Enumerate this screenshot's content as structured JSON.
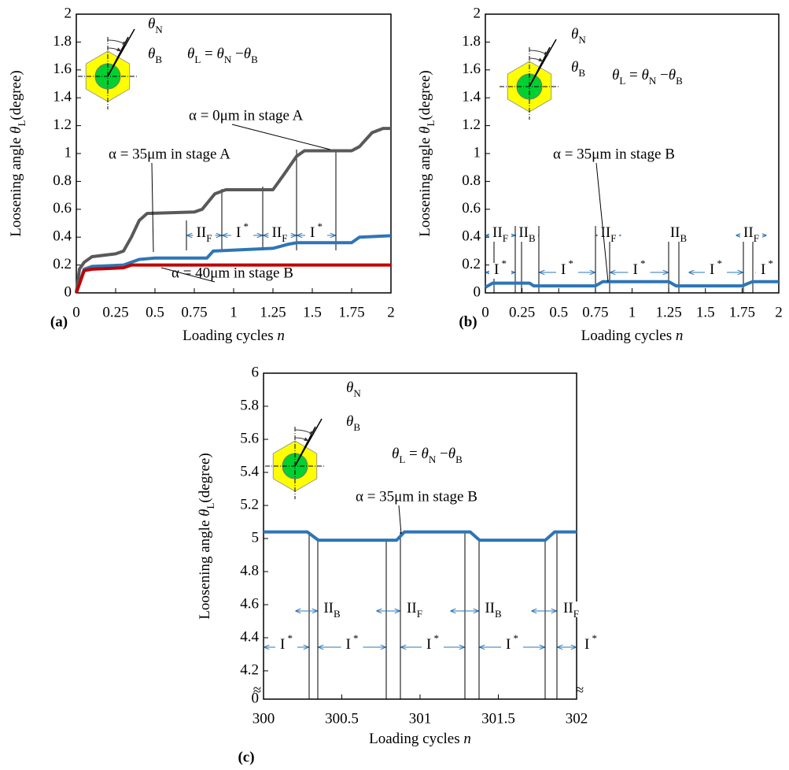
{
  "chart_data": [
    {
      "type": "line",
      "panel": "(a)",
      "xlabel": [
        "Loading cycles ",
        {
          "i": "n"
        }
      ],
      "ylabel": [
        "Loosening angle ",
        {
          "i": "θ"
        },
        {
          "sub": "L"
        },
        "(degree)"
      ],
      "formula": [
        {
          "i": "θ"
        },
        {
          "sub": "L"
        },
        " = ",
        {
          "i": "θ"
        },
        {
          "sub": "N"
        },
        " −",
        {
          "i": "θ"
        },
        {
          "sub": "B"
        }
      ],
      "inset_n": [
        {
          "i": "θ"
        },
        {
          "sub": "N"
        }
      ],
      "inset_b": [
        {
          "i": "θ"
        },
        {
          "sub": "B"
        }
      ],
      "xlim": [
        0,
        2
      ],
      "ylim": [
        0,
        2
      ],
      "xticks": [
        0,
        0.25,
        0.5,
        0.75,
        1,
        1.25,
        1.5,
        1.75,
        2
      ],
      "yticks": [
        0,
        0.2,
        0.4,
        0.6,
        0.8,
        1,
        1.2,
        1.4,
        1.6,
        1.8,
        2
      ],
      "regions": [
        [
          "II",
          {
            "sub": "F"
          }
        ],
        [
          "I",
          {
            "sup": " *"
          }
        ],
        [
          "II",
          {
            "sub": "F"
          }
        ],
        [
          "I",
          {
            "sup": " *"
          }
        ]
      ],
      "series": [
        {
          "name": "α = 0μm in stage A",
          "color": "#595959",
          "x": [
            0,
            0.02,
            0.05,
            0.1,
            0.25,
            0.3,
            0.35,
            0.4,
            0.45,
            0.75,
            0.8,
            0.88,
            0.95,
            1.25,
            1.32,
            1.4,
            1.45,
            1.75,
            1.8,
            1.88,
            1.95,
            2
          ],
          "values": [
            0,
            0.17,
            0.22,
            0.26,
            0.28,
            0.3,
            0.4,
            0.52,
            0.57,
            0.58,
            0.6,
            0.71,
            0.74,
            0.74,
            0.85,
            0.98,
            1.02,
            1.02,
            1.05,
            1.15,
            1.18,
            1.18
          ]
        },
        {
          "name": "α = 35μm in stage A",
          "color": "#2e75b6",
          "x": [
            0,
            0.05,
            0.1,
            0.3,
            0.4,
            0.5,
            0.83,
            0.87,
            1.25,
            1.35,
            1.4,
            1.75,
            1.8,
            2
          ],
          "values": [
            0,
            0.17,
            0.19,
            0.2,
            0.24,
            0.25,
            0.25,
            0.3,
            0.32,
            0.35,
            0.36,
            0.36,
            0.4,
            0.41
          ]
        },
        {
          "name": "α = 40μm in stage B",
          "color": "#c00000",
          "x": [
            0,
            0.05,
            0.1,
            0.3,
            0.35,
            2
          ],
          "values": [
            0,
            0.16,
            0.17,
            0.18,
            0.2,
            0.2
          ]
        }
      ]
    },
    {
      "type": "line",
      "panel": "(b)",
      "xlabel": [
        "Loading cycles ",
        {
          "i": "n"
        }
      ],
      "ylabel": [
        "Loosening angle ",
        {
          "i": "θ"
        },
        {
          "sub": "L"
        },
        "(degree)"
      ],
      "formula": [
        {
          "i": "θ"
        },
        {
          "sub": "L"
        },
        " = ",
        {
          "i": "θ"
        },
        {
          "sub": "N"
        },
        " −",
        {
          "i": "θ"
        },
        {
          "sub": "B"
        }
      ],
      "inset_n": [
        {
          "i": "θ"
        },
        {
          "sub": "N"
        }
      ],
      "inset_b": [
        {
          "i": "θ"
        },
        {
          "sub": "B"
        }
      ],
      "xlim": [
        0,
        2
      ],
      "ylim": [
        0,
        2
      ],
      "xticks": [
        0,
        0.25,
        0.5,
        0.75,
        1,
        1.25,
        1.5,
        1.75,
        2
      ],
      "yticks": [
        0,
        0.2,
        0.4,
        0.6,
        0.8,
        1,
        1.2,
        1.4,
        1.6,
        1.8,
        2
      ],
      "regions": [
        [
          "II",
          {
            "sub": "F"
          }
        ],
        [
          "II",
          {
            "sub": "B"
          }
        ],
        [
          "II",
          {
            "sub": "F"
          }
        ],
        [
          "II",
          {
            "sub": "B"
          }
        ],
        [
          "II",
          {
            "sub": "F"
          }
        ],
        [
          "I",
          {
            "sup": " *"
          }
        ],
        [
          "I",
          {
            "sup": " *"
          }
        ],
        [
          "I",
          {
            "sup": " *"
          }
        ],
        [
          "I",
          {
            "sup": " *"
          }
        ],
        [
          "I",
          {
            "sup": " *"
          }
        ]
      ],
      "series": [
        {
          "name": "α = 35μm in stage B",
          "color": "#2e75b6",
          "x": [
            0,
            0.05,
            0.3,
            0.33,
            0.75,
            0.8,
            1.25,
            1.3,
            1.75,
            1.82,
            2
          ],
          "values": [
            0.04,
            0.07,
            0.07,
            0.05,
            0.05,
            0.08,
            0.08,
            0.05,
            0.05,
            0.08,
            0.08
          ]
        }
      ]
    },
    {
      "type": "line",
      "panel": "(c)",
      "xlabel": [
        "Loading cycles ",
        {
          "i": "n"
        }
      ],
      "ylabel": [
        "Loosening angle ",
        {
          "i": "θ"
        },
        {
          "sub": "L"
        },
        "(degree)"
      ],
      "formula": [
        {
          "i": "θ"
        },
        {
          "sub": "L"
        },
        " = ",
        {
          "i": "θ"
        },
        {
          "sub": "N"
        },
        " −",
        {
          "i": "θ"
        },
        {
          "sub": "B"
        }
      ],
      "inset_n": [
        {
          "i": "θ"
        },
        {
          "sub": "N"
        }
      ],
      "inset_b": [
        {
          "i": "θ"
        },
        {
          "sub": "B"
        }
      ],
      "xlim": [
        300,
        302
      ],
      "ylim": [
        0,
        6
      ],
      "ybreak": [
        0,
        4.2
      ],
      "break_mark": "≈",
      "xticks": [
        300,
        300.5,
        301,
        301.5,
        302
      ],
      "yticks": [
        0,
        4.2,
        4.4,
        4.6,
        4.8,
        5,
        5.2,
        5.4,
        5.6,
        5.8,
        6
      ],
      "regions": [
        [
          "II",
          {
            "sub": "B"
          }
        ],
        [
          "II",
          {
            "sub": "F"
          }
        ],
        [
          "II",
          {
            "sub": "B"
          }
        ],
        [
          "II",
          {
            "sub": "F"
          }
        ],
        [
          "I",
          {
            "sup": " *"
          }
        ],
        [
          "I",
          {
            "sup": " *"
          }
        ],
        [
          "I",
          {
            "sup": " *"
          }
        ],
        [
          "I",
          {
            "sup": " *"
          }
        ],
        [
          "I",
          {
            "sup": " *"
          }
        ]
      ],
      "series": [
        {
          "name": "α = 35μm in stage B",
          "color": "#2e75b6",
          "x": [
            300,
            300.28,
            300.35,
            300.85,
            300.9,
            301.32,
            301.38,
            301.8,
            301.86,
            302
          ],
          "values": [
            5.04,
            5.04,
            4.99,
            4.99,
            5.04,
            5.04,
            4.99,
            4.99,
            5.04,
            5.04
          ]
        }
      ]
    }
  ]
}
